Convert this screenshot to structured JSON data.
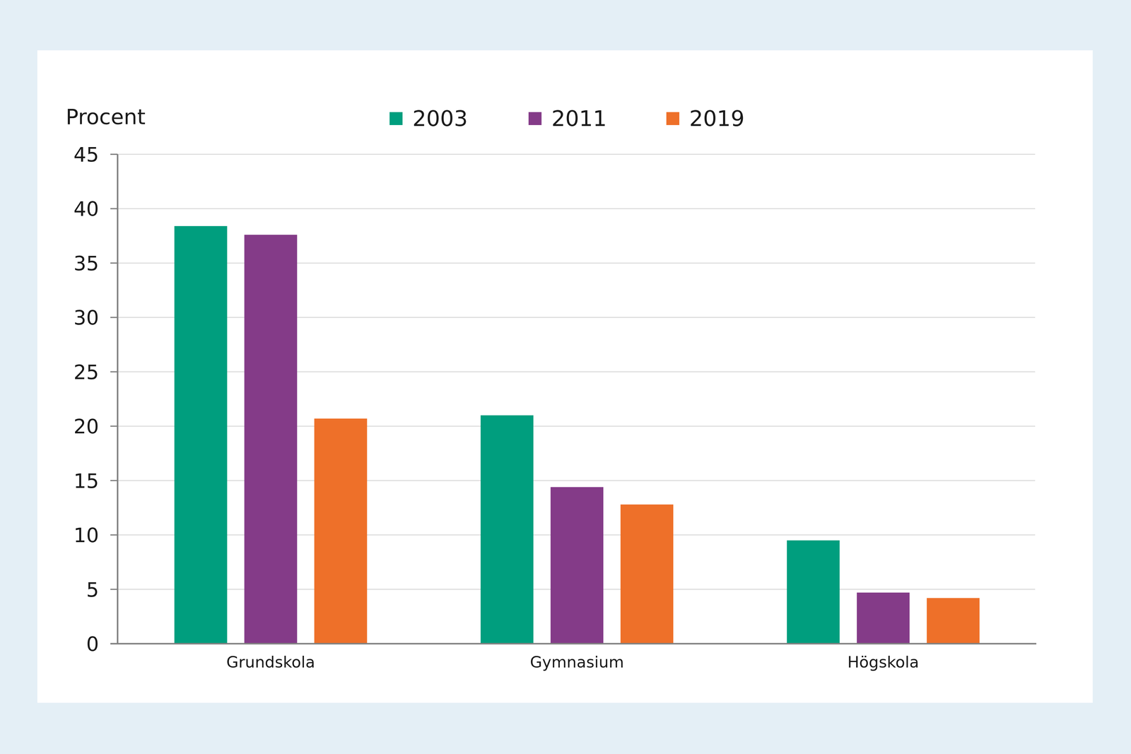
{
  "chart_data": {
    "type": "bar",
    "y_label": "Procent",
    "categories": [
      "Grundskola",
      "Gymnasium",
      "Högskola"
    ],
    "series": [
      {
        "name": "2003",
        "color": "#009e7e",
        "values": [
          38.4,
          21.0,
          9.5
        ]
      },
      {
        "name": "2011",
        "color": "#843b88",
        "values": [
          37.6,
          14.4,
          4.7
        ]
      },
      {
        "name": "2019",
        "color": "#ee7029",
        "values": [
          20.7,
          12.8,
          4.2
        ]
      }
    ],
    "ylim": [
      0,
      45
    ],
    "yticks": [
      0,
      5,
      10,
      15,
      20,
      25,
      30,
      35,
      40,
      45
    ],
    "grid": true,
    "legend": "top"
  }
}
